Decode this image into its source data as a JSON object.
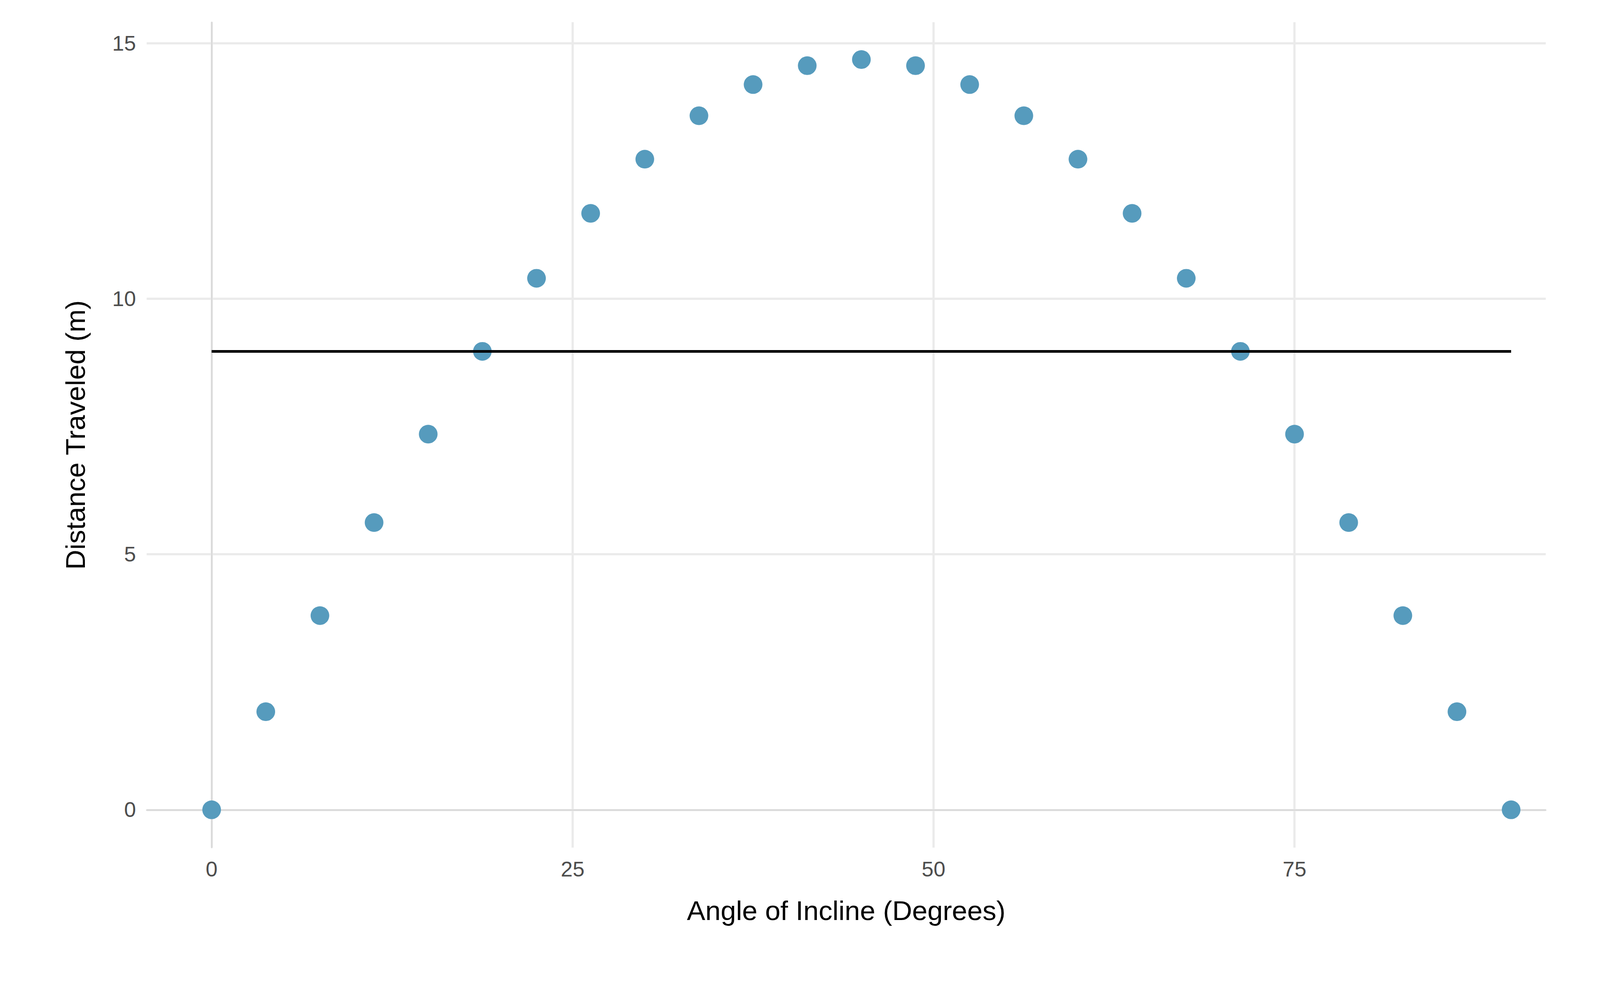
{
  "chart_data": {
    "type": "scatter",
    "xlabel": "Angle of Incline (Degrees)",
    "ylabel": "Distance Traveled (m)",
    "series": [
      {
        "type": "scatter",
        "color": "#569BBD",
        "marker": "circle",
        "x": [
          0,
          3.75,
          7.5,
          11.25,
          15,
          18.75,
          22.5,
          26.25,
          30,
          33.75,
          37.5,
          41.25,
          45,
          48.75,
          52.5,
          56.25,
          60,
          63.75,
          67.5,
          71.25,
          75,
          78.75,
          82.5,
          86.25,
          90
        ],
        "values": [
          0,
          1.92,
          3.8,
          5.62,
          7.35,
          8.97,
          10.4,
          11.67,
          12.73,
          13.58,
          14.19,
          14.56,
          14.68,
          14.56,
          14.19,
          13.58,
          12.73,
          11.67,
          10.4,
          8.97,
          7.35,
          5.62,
          3.8,
          1.92,
          0
        ]
      },
      {
        "type": "line",
        "color": "#000000",
        "line_style": "solid",
        "x": [
          0,
          90
        ],
        "values": [
          8.97,
          8.97
        ]
      }
    ],
    "xlim": [
      -4.5,
      92.4
    ],
    "ylim": [
      -0.74,
      15.41
    ],
    "xticks": [
      0,
      25,
      50,
      75
    ],
    "yticks": [
      0,
      5,
      10,
      15
    ],
    "grid": true
  }
}
